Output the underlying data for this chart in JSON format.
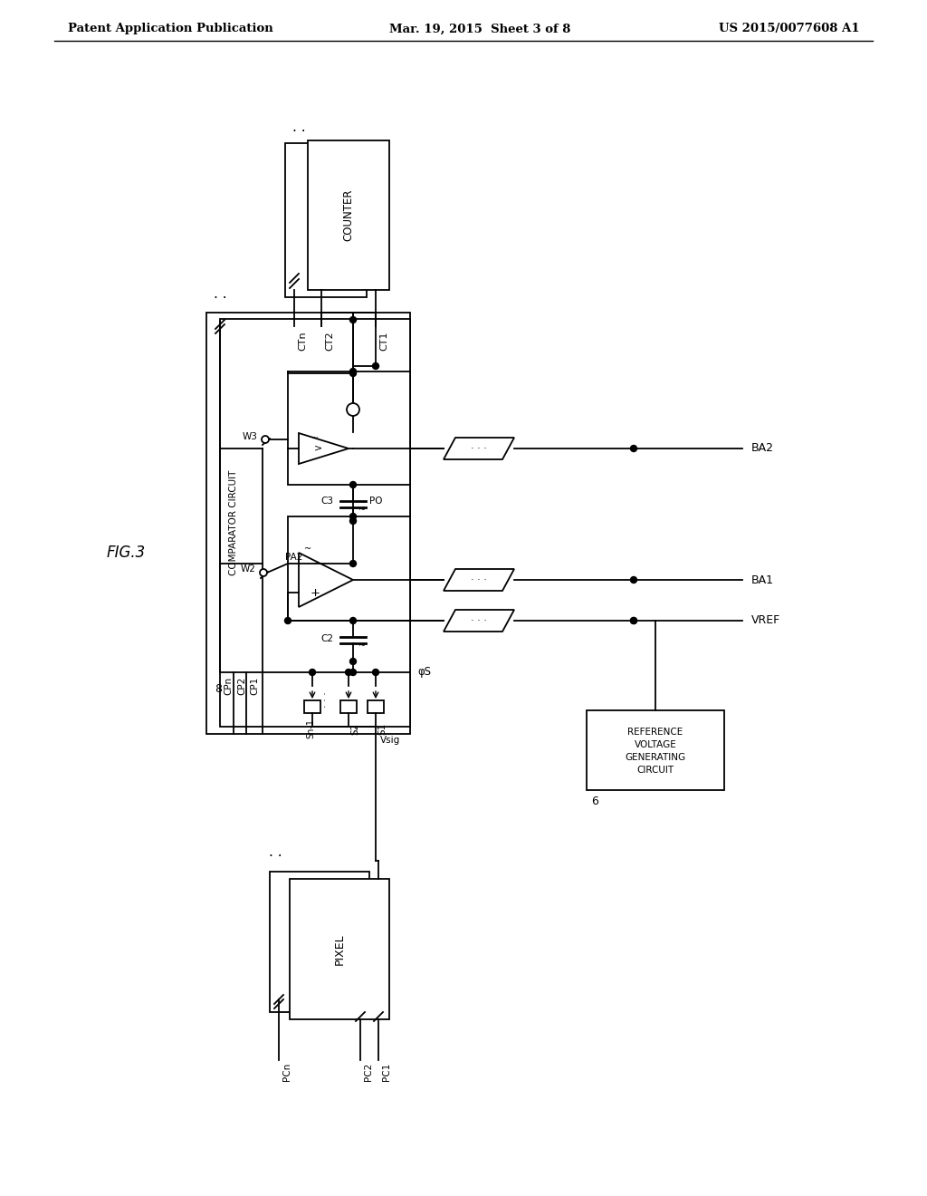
{
  "bg_color": "#ffffff",
  "line_color": "#000000",
  "header_left": "Patent Application Publication",
  "header_mid": "Mar. 19, 2015  Sheet 3 of 8",
  "header_right": "US 2015/0077608 A1"
}
